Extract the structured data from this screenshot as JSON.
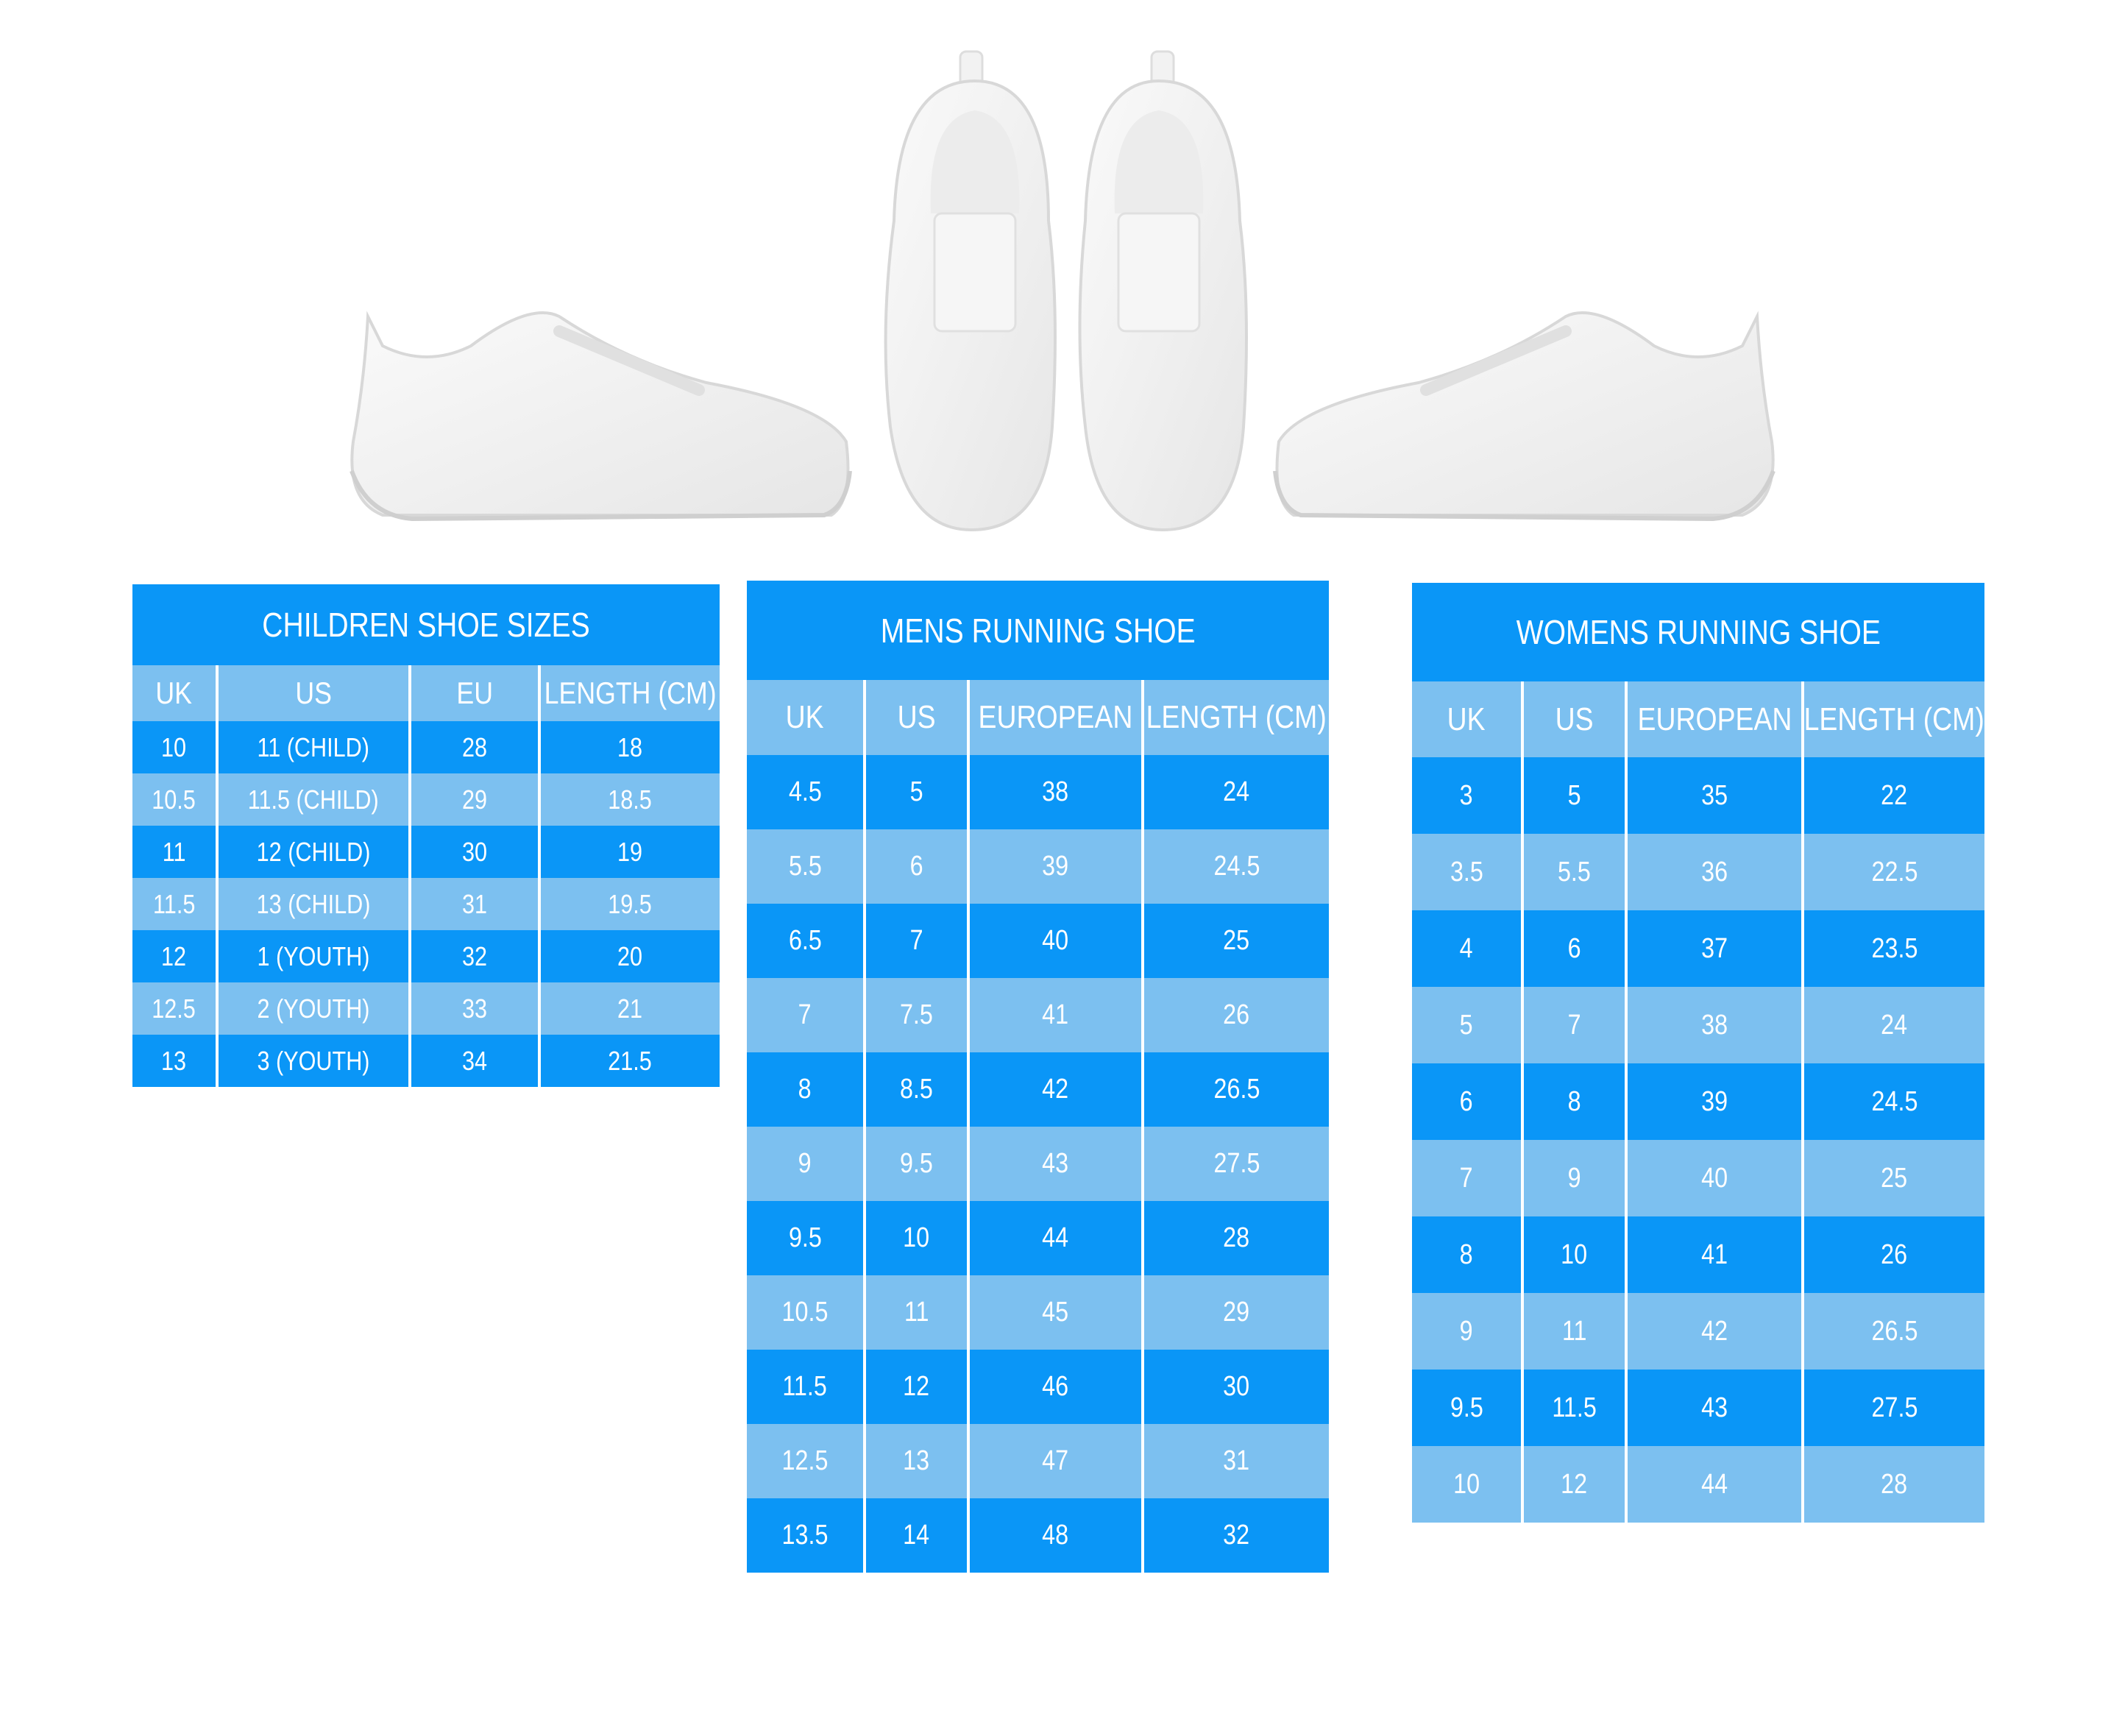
{
  "colors": {
    "dark_row": "#0a96f7",
    "light_row": "#7cc0f0",
    "text": "#ffffff"
  },
  "images": [
    "sneaker-side-left",
    "sneaker-top-left",
    "sneaker-top-right",
    "sneaker-side-right"
  ],
  "tables": {
    "children": {
      "title": "CHILDREN SHOE SIZES",
      "headers": [
        "UK",
        "US",
        "EU",
        "LENGTH (CM)"
      ],
      "rows": [
        [
          "10",
          "11 (CHILD)",
          "28",
          "18"
        ],
        [
          "10.5",
          "11.5 (CHILD)",
          "29",
          "18.5"
        ],
        [
          "11",
          "12 (CHILD)",
          "30",
          "19"
        ],
        [
          "11.5",
          "13 (CHILD)",
          "31",
          "19.5"
        ],
        [
          "12",
          "1 (YOUTH)",
          "32",
          "20"
        ],
        [
          "12.5",
          "2 (YOUTH)",
          "33",
          "21"
        ],
        [
          "13",
          "3 (YOUTH)",
          "34",
          "21.5"
        ]
      ]
    },
    "mens": {
      "title": "MENS RUNNING SHOE",
      "headers": [
        "UK",
        "US",
        "EUROPEAN",
        "LENGTH (CM)"
      ],
      "rows": [
        [
          "4.5",
          "5",
          "38",
          "24"
        ],
        [
          "5.5",
          "6",
          "39",
          "24.5"
        ],
        [
          "6.5",
          "7",
          "40",
          "25"
        ],
        [
          "7",
          "7.5",
          "41",
          "26"
        ],
        [
          "8",
          "8.5",
          "42",
          "26.5"
        ],
        [
          "9",
          "9.5",
          "43",
          "27.5"
        ],
        [
          "9.5",
          "10",
          "44",
          "28"
        ],
        [
          "10.5",
          "11",
          "45",
          "29"
        ],
        [
          "11.5",
          "12",
          "46",
          "30"
        ],
        [
          "12.5",
          "13",
          "47",
          "31"
        ],
        [
          "13.5",
          "14",
          "48",
          "32"
        ]
      ]
    },
    "womens": {
      "title": "WOMENS RUNNING SHOE",
      "headers": [
        "UK",
        "US",
        "EUROPEAN",
        "LENGTH (CM)"
      ],
      "rows": [
        [
          "3",
          "5",
          "35",
          "22"
        ],
        [
          "3.5",
          "5.5",
          "36",
          "22.5"
        ],
        [
          "4",
          "6",
          "37",
          "23.5"
        ],
        [
          "5",
          "7",
          "38",
          "24"
        ],
        [
          "6",
          "8",
          "39",
          "24.5"
        ],
        [
          "7",
          "9",
          "40",
          "25"
        ],
        [
          "8",
          "10",
          "41",
          "26"
        ],
        [
          "9",
          "11",
          "42",
          "26.5"
        ],
        [
          "9.5",
          "11.5",
          "43",
          "27.5"
        ],
        [
          "10",
          "12",
          "44",
          "28"
        ]
      ]
    }
  }
}
